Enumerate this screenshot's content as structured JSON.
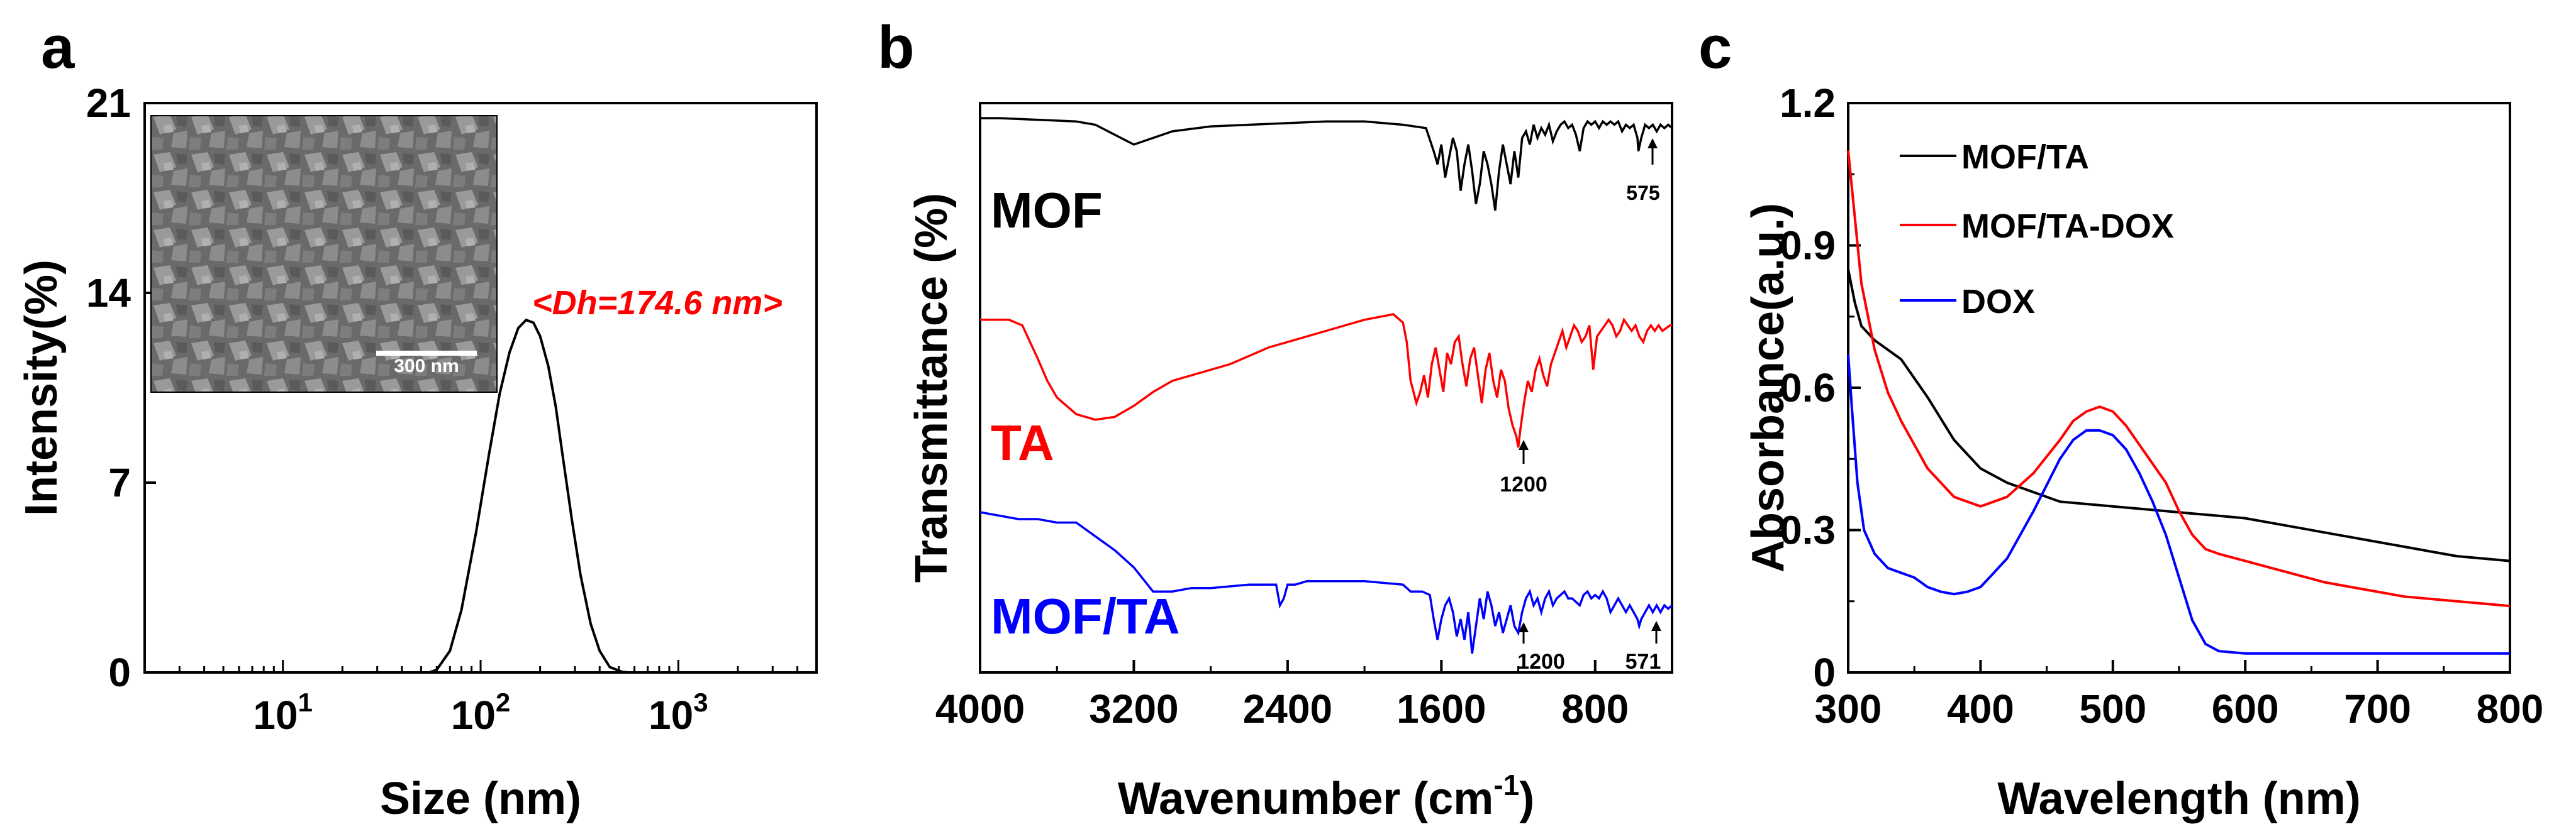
{
  "colors": {
    "black": "#000000",
    "red": "#ff0000",
    "blue": "#0000ff"
  },
  "chart_data": [
    {
      "panel_label": "a",
      "type": "line",
      "xlabel": "Size (nm)",
      "ylabel": "Intensity(%)",
      "x_scale": "log",
      "xlim": [
        2,
        5000
      ],
      "ylim": [
        0,
        21
      ],
      "yticks": [
        "0",
        "7",
        "14",
        "21"
      ],
      "xticks": [
        {
          "value": 10,
          "base": "10",
          "exp": "1"
        },
        {
          "value": 100,
          "base": "10",
          "exp": "2"
        },
        {
          "value": 1000,
          "base": "10",
          "exp": "3"
        }
      ],
      "series": [
        {
          "color": "#000000",
          "x": [
            2,
            55,
            60,
            70,
            80,
            95,
            110,
            125,
            140,
            155,
            170,
            185,
            200,
            220,
            240,
            260,
            290,
            320,
            360,
            400,
            450,
            520,
            560,
            5000
          ],
          "y": [
            0,
            0,
            0.1,
            0.8,
            2.3,
            5.2,
            8.0,
            10.3,
            11.8,
            12.7,
            13.0,
            12.9,
            12.4,
            11.3,
            9.8,
            8.0,
            5.6,
            3.6,
            1.8,
            0.8,
            0.2,
            0.02,
            0,
            0
          ]
        }
      ],
      "annotation": "<Dh=174.6 nm>",
      "inset": {
        "scale_bar": "300 nm"
      }
    },
    {
      "panel_label": "b",
      "type": "line",
      "xlabel": "Wavenumber (cm",
      "xlabel_sup": "-1",
      "xlabel_end": ")",
      "ylabel": "Transmittance (%)",
      "xlim": [
        4000,
        400
      ],
      "xticks": [
        "4000",
        "3200",
        "2400",
        "1600",
        "800"
      ],
      "series": [
        {
          "name": "MOF",
          "color": "#000000",
          "x": [
            4000,
            3900,
            3700,
            3500,
            3400,
            3300,
            3200,
            3100,
            3000,
            2800,
            2600,
            2400,
            2200,
            2000,
            1800,
            1680,
            1640,
            1620,
            1600,
            1580,
            1560,
            1540,
            1520,
            1500,
            1480,
            1460,
            1440,
            1420,
            1400,
            1380,
            1360,
            1340,
            1320,
            1300,
            1280,
            1260,
            1240,
            1220,
            1200,
            1180,
            1160,
            1140,
            1120,
            1100,
            1080,
            1060,
            1040,
            1020,
            1000,
            980,
            960,
            940,
            920,
            900,
            880,
            860,
            840,
            820,
            800,
            780,
            760,
            740,
            720,
            700,
            680,
            660,
            640,
            620,
            600,
            580,
            575,
            560,
            540,
            520,
            500,
            480,
            460,
            440,
            420,
            400
          ],
          "y": [
            98,
            98,
            97.5,
            97,
            96,
            93,
            90,
            92,
            94,
            95.5,
            96,
            96.5,
            97,
            97,
            96,
            95,
            88,
            84,
            90,
            80,
            86,
            92,
            88,
            76,
            84,
            90,
            82,
            72,
            78,
            88,
            84,
            78,
            70,
            82,
            90,
            84,
            78,
            88,
            80,
            92,
            94,
            90,
            96,
            92,
            95,
            93,
            96,
            91,
            94,
            96,
            97,
            95,
            96,
            93,
            88,
            95,
            97,
            96,
            97,
            95,
            97,
            96,
            97,
            96,
            97,
            94,
            96,
            95,
            96,
            92,
            88,
            92,
            96,
            95,
            96,
            94,
            96,
            95,
            96,
            95
          ]
        },
        {
          "name": "TA",
          "color": "#ff0000",
          "x": [
            4000,
            3850,
            3780,
            3740,
            3700,
            3650,
            3600,
            3500,
            3400,
            3300,
            3200,
            3100,
            3000,
            2900,
            2800,
            2700,
            2600,
            2500,
            2400,
            2200,
            2000,
            1850,
            1800,
            1780,
            1760,
            1730,
            1710,
            1690,
            1670,
            1650,
            1630,
            1610,
            1590,
            1570,
            1550,
            1530,
            1510,
            1490,
            1470,
            1450,
            1430,
            1410,
            1390,
            1370,
            1350,
            1330,
            1310,
            1290,
            1270,
            1250,
            1230,
            1210,
            1200,
            1190,
            1170,
            1150,
            1130,
            1110,
            1090,
            1070,
            1050,
            1030,
            1010,
            990,
            970,
            950,
            930,
            910,
            890,
            870,
            850,
            830,
            810,
            790,
            770,
            750,
            730,
            710,
            690,
            670,
            650,
            630,
            610,
            590,
            570,
            550,
            530,
            510,
            490,
            470,
            450,
            430,
            410,
            400
          ],
          "y": [
            66,
            66,
            64,
            58,
            52,
            44,
            38,
            32,
            30,
            31,
            35,
            40,
            44,
            46,
            48,
            50,
            53,
            56,
            58,
            62,
            66,
            68,
            65,
            58,
            44,
            36,
            40,
            46,
            38,
            50,
            56,
            48,
            40,
            54,
            50,
            58,
            60,
            50,
            42,
            52,
            56,
            46,
            36,
            48,
            54,
            44,
            38,
            48,
            44,
            34,
            28,
            24,
            20,
            26,
            36,
            44,
            40,
            48,
            52,
            46,
            42,
            50,
            54,
            58,
            62,
            56,
            60,
            64,
            62,
            58,
            60,
            64,
            48,
            60,
            62,
            64,
            66,
            64,
            60,
            62,
            66,
            64,
            62,
            64,
            60,
            58,
            62,
            64,
            62,
            64,
            62,
            63,
            64,
            64
          ]
        },
        {
          "name": "MOF/TA",
          "color": "#0000ff",
          "x": [
            4000,
            3900,
            3800,
            3700,
            3600,
            3500,
            3400,
            3300,
            3200,
            3100,
            3000,
            2900,
            2800,
            2700,
            2600,
            2500,
            2460,
            2440,
            2420,
            2400,
            2360,
            2300,
            2200,
            2100,
            2000,
            1900,
            1800,
            1760,
            1700,
            1660,
            1640,
            1620,
            1600,
            1580,
            1560,
            1540,
            1520,
            1500,
            1480,
            1460,
            1440,
            1420,
            1400,
            1380,
            1360,
            1340,
            1320,
            1300,
            1280,
            1260,
            1240,
            1220,
            1200,
            1180,
            1160,
            1140,
            1120,
            1100,
            1080,
            1060,
            1040,
            1020,
            1000,
            980,
            960,
            940,
            920,
            900,
            880,
            860,
            840,
            820,
            800,
            780,
            760,
            740,
            720,
            700,
            680,
            660,
            640,
            620,
            600,
            580,
            571,
            560,
            540,
            520,
            500,
            480,
            460,
            440,
            420,
            400
          ],
          "y": [
            35,
            34,
            33,
            33,
            32,
            32,
            28,
            24,
            19,
            12,
            12,
            13,
            13,
            13.5,
            14,
            14,
            14,
            8,
            10,
            14,
            14,
            15,
            15,
            15,
            15,
            14.5,
            14,
            12,
            12,
            11,
            4,
            -2,
            4,
            8,
            10,
            6,
            -1,
            4,
            -2,
            6,
            -6,
            2,
            10,
            4,
            12,
            8,
            2,
            6,
            0,
            4,
            8,
            2,
            0,
            6,
            10,
            12,
            8,
            10,
            6,
            10,
            12,
            8,
            10,
            11,
            12,
            10,
            10,
            9,
            8,
            11,
            12,
            10,
            11,
            10,
            12,
            10,
            6,
            8,
            10,
            8,
            6,
            8,
            6,
            4,
            2,
            4,
            6,
            8,
            6,
            8,
            6,
            8,
            7,
            8
          ]
        }
      ],
      "labels": [
        {
          "text": "MOF",
          "color": "#000000"
        },
        {
          "text": "TA",
          "color": "#ff0000"
        },
        {
          "text": "MOF/TA",
          "color": "#0000ff"
        }
      ],
      "peak_labels": [
        "575",
        "1200",
        "1200",
        "571"
      ]
    },
    {
      "panel_label": "c",
      "type": "line",
      "xlabel": "Wavelength (nm)",
      "ylabel": "Absorbance(a.u.)",
      "xlim": [
        300,
        800
      ],
      "ylim": [
        0,
        1.2
      ],
      "xticks": [
        "300",
        "400",
        "500",
        "600",
        "700",
        "800"
      ],
      "yticks": [
        "0",
        "0.3",
        "0.6",
        "0.9",
        "1.2"
      ],
      "legend_position": "top-left",
      "series": [
        {
          "name": "MOF/TA",
          "color": "#000000",
          "x": [
            300,
            305,
            310,
            320,
            340,
            360,
            380,
            400,
            420,
            440,
            460,
            480,
            500,
            520,
            540,
            560,
            580,
            600,
            620,
            640,
            660,
            680,
            700,
            720,
            740,
            760,
            780,
            800
          ],
          "y": [
            0.85,
            0.78,
            0.73,
            0.7,
            0.66,
            0.58,
            0.49,
            0.43,
            0.4,
            0.38,
            0.36,
            0.355,
            0.35,
            0.345,
            0.34,
            0.335,
            0.33,
            0.325,
            0.315,
            0.305,
            0.295,
            0.285,
            0.275,
            0.265,
            0.255,
            0.245,
            0.24,
            0.235
          ]
        },
        {
          "name": "MOF/TA-DOX",
          "color": "#ff0000",
          "x": [
            300,
            305,
            310,
            320,
            330,
            340,
            350,
            360,
            380,
            400,
            420,
            440,
            460,
            470,
            480,
            490,
            500,
            510,
            520,
            530,
            540,
            550,
            560,
            570,
            580,
            600,
            620,
            640,
            660,
            680,
            700,
            720,
            740,
            760,
            780,
            800
          ],
          "y": [
            1.1,
            0.96,
            0.82,
            0.68,
            0.59,
            0.53,
            0.48,
            0.43,
            0.37,
            0.35,
            0.37,
            0.42,
            0.49,
            0.53,
            0.55,
            0.56,
            0.55,
            0.52,
            0.48,
            0.44,
            0.4,
            0.34,
            0.29,
            0.26,
            0.25,
            0.235,
            0.22,
            0.205,
            0.19,
            0.18,
            0.17,
            0.16,
            0.155,
            0.15,
            0.145,
            0.14
          ]
        },
        {
          "name": "DOX",
          "color": "#0000ff",
          "x": [
            300,
            303,
            307,
            312,
            320,
            330,
            340,
            350,
            360,
            370,
            380,
            390,
            400,
            420,
            440,
            460,
            470,
            480,
            490,
            500,
            510,
            520,
            530,
            540,
            550,
            560,
            570,
            580,
            600,
            650,
            700,
            750,
            800
          ],
          "y": [
            0.67,
            0.55,
            0.4,
            0.3,
            0.25,
            0.22,
            0.21,
            0.2,
            0.18,
            0.17,
            0.165,
            0.17,
            0.18,
            0.24,
            0.34,
            0.45,
            0.49,
            0.51,
            0.51,
            0.5,
            0.47,
            0.42,
            0.36,
            0.29,
            0.2,
            0.11,
            0.06,
            0.045,
            0.04,
            0.04,
            0.04,
            0.04,
            0.04
          ]
        }
      ]
    }
  ]
}
